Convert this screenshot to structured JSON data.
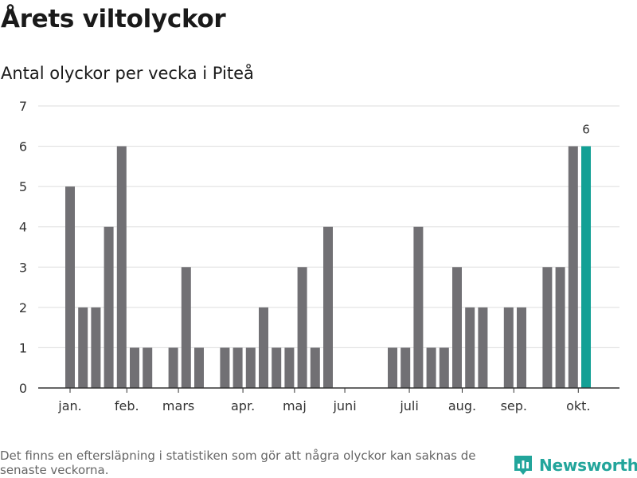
{
  "header": {
    "title": "Årets viltolyckor",
    "subtitle": "Antal olyckor per vecka i Piteå"
  },
  "footer": {
    "note": "Det finns en eftersläpning i statistiken som gör att några olyckor kan saknas de senaste veckorna.",
    "brand": "Newsworthy",
    "brand_icon": "newsworthy-logo-icon"
  },
  "colors": {
    "bar": "#717074",
    "highlight": "#13a095",
    "grid": "#dddddd",
    "axis": "#333333",
    "brand": "#22a59b"
  },
  "chart_data": {
    "type": "bar",
    "title": "Antal olyckor per vecka i Piteå",
    "xlabel": "",
    "ylabel": "",
    "ylim": [
      0,
      7
    ],
    "yticks": [
      0,
      1,
      2,
      3,
      4,
      5,
      6,
      7
    ],
    "grid": true,
    "x": [
      1,
      2,
      3,
      4,
      5,
      6,
      7,
      8,
      9,
      10,
      11,
      12,
      13,
      14,
      15,
      16,
      17,
      18,
      19,
      20,
      21,
      22,
      23,
      24,
      25,
      26,
      27,
      28,
      29,
      30,
      31,
      32,
      33,
      34,
      35,
      36,
      37,
      38,
      39,
      40,
      41
    ],
    "values": [
      5,
      2,
      2,
      4,
      6,
      1,
      1,
      0,
      1,
      3,
      1,
      0,
      1,
      1,
      1,
      2,
      1,
      1,
      3,
      1,
      4,
      0,
      0,
      0,
      0,
      1,
      1,
      4,
      1,
      1,
      3,
      2,
      2,
      0,
      2,
      2,
      0,
      3,
      3,
      6,
      6
    ],
    "highlight_index": 40,
    "highlight_label": "6",
    "month_ticks": [
      {
        "label": "jan.",
        "x": 1.0
      },
      {
        "label": "feb.",
        "x": 5.4
      },
      {
        "label": "mars",
        "x": 9.4
      },
      {
        "label": "apr.",
        "x": 14.4
      },
      {
        "label": "maj",
        "x": 18.4
      },
      {
        "label": "juni",
        "x": 22.3
      },
      {
        "label": "juli",
        "x": 27.3
      },
      {
        "label": "aug.",
        "x": 31.4
      },
      {
        "label": "sep.",
        "x": 35.4
      },
      {
        "label": "okt.",
        "x": 40.4
      }
    ]
  }
}
